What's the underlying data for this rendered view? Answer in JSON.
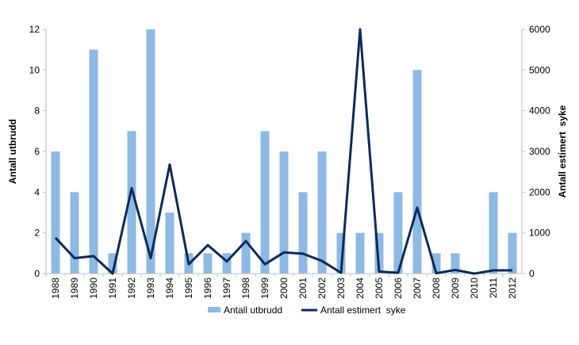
{
  "chart_data": {
    "type": "bar+line",
    "categories": [
      "1988",
      "1989",
      "1990",
      "1991",
      "1992",
      "1993",
      "1994",
      "1995",
      "1996",
      "1997",
      "1998",
      "1999",
      "2000",
      "2001",
      "2002",
      "2003",
      "2004",
      "2005",
      "2006",
      "2007",
      "2008",
      "2009",
      "2010",
      "2011",
      "2012"
    ],
    "series": [
      {
        "name": "Antall utbrudd",
        "type": "bar",
        "axis": "left",
        "color": "#8db9e3",
        "values": [
          6,
          4,
          11,
          1,
          7,
          12,
          3,
          1,
          1,
          1,
          2,
          7,
          6,
          4,
          6,
          2,
          2,
          2,
          4,
          10,
          1,
          1,
          0,
          4,
          2
        ]
      },
      {
        "name": "Antall estimert  syke",
        "type": "line",
        "axis": "right",
        "color": "#0e2a5c",
        "values": [
          880,
          380,
          430,
          0,
          2100,
          380,
          2680,
          230,
          700,
          300,
          800,
          230,
          520,
          490,
          310,
          20,
          6000,
          50,
          20,
          1620,
          10,
          90,
          0,
          80,
          80
        ]
      }
    ],
    "ylabel": "Antall utbrudd",
    "y2label": "Antall estimert  syke",
    "ylim": [
      0,
      12
    ],
    "yticks": [
      0,
      2,
      4,
      6,
      8,
      10,
      12
    ],
    "y2lim": [
      0,
      6000
    ],
    "y2ticks": [
      0,
      1000,
      2000,
      3000,
      4000,
      5000,
      6000
    ],
    "grid": false,
    "legend": "bottom"
  }
}
